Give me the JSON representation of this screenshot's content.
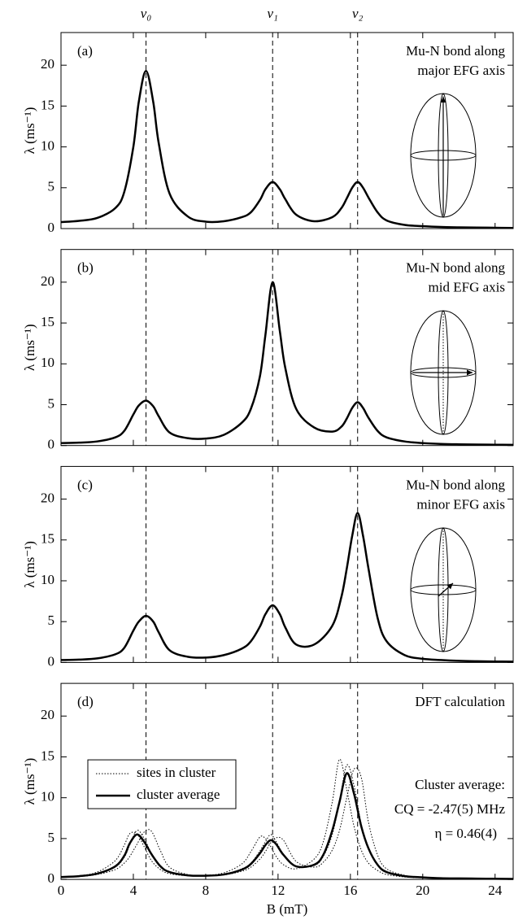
{
  "chart_data": [
    {
      "type": "line",
      "panel_label": "(a)",
      "annotation": [
        "Mu-N bond along",
        "major EFG axis"
      ],
      "ylabel": "λ (ms⁻¹)",
      "xlim": [
        0,
        25
      ],
      "ylim": [
        0,
        24
      ],
      "yticks": [
        0,
        5,
        10,
        15,
        20
      ],
      "xticks": [
        0,
        4,
        8,
        12,
        16,
        20,
        24
      ],
      "xtick_labels": false,
      "vlines": [
        {
          "value": 4.7,
          "label": "ν₀"
        },
        {
          "value": 11.7,
          "label": "ν₁"
        },
        {
          "value": 16.4,
          "label": "ν₂"
        }
      ],
      "x": [
        0,
        1,
        2,
        3,
        3.5,
        4,
        4.3,
        4.7,
        5.1,
        5.4,
        6,
        7,
        8,
        9,
        10,
        10.5,
        11,
        11.3,
        11.7,
        12.1,
        12.4,
        13,
        14,
        15,
        15.5,
        15.8,
        16.1,
        16.4,
        16.7,
        17,
        17.5,
        18,
        19,
        20,
        21,
        22,
        23,
        24,
        25
      ],
      "series": [
        {
          "color": "#000000",
          "style": "solid",
          "values": [
            0.8,
            0.95,
            1.3,
            2.5,
            4.5,
            10,
            15.5,
            19.3,
            15.5,
            10.5,
            4.3,
            1.5,
            0.85,
            0.9,
            1.4,
            2.0,
            3.5,
            4.8,
            5.7,
            4.8,
            3.6,
            1.7,
            0.9,
            1.4,
            2.5,
            3.7,
            5.0,
            5.7,
            5.0,
            3.8,
            2.0,
            1.0,
            0.45,
            0.3,
            0.2,
            0.15,
            0.12,
            0.1,
            0.08
          ]
        }
      ]
    },
    {
      "type": "line",
      "panel_label": "(b)",
      "annotation": [
        "Mu-N bond along",
        "mid EFG axis"
      ],
      "ylabel": "λ (ms⁻¹)",
      "xlim": [
        0,
        25
      ],
      "ylim": [
        0,
        24
      ],
      "yticks": [
        0,
        5,
        10,
        15,
        20
      ],
      "xticks": [
        0,
        4,
        8,
        12,
        16,
        20,
        24
      ],
      "xtick_labels": false,
      "vlines": [
        4.7,
        11.7,
        16.4
      ],
      "x": [
        0,
        1,
        2,
        3,
        3.5,
        4,
        4.3,
        4.7,
        5.1,
        5.4,
        6,
        7,
        8,
        9,
        10,
        10.5,
        11,
        11.3,
        11.7,
        12.1,
        12.4,
        13,
        14,
        15,
        15.5,
        15.8,
        16.1,
        16.4,
        16.7,
        17,
        17.5,
        18,
        19,
        20,
        21,
        22,
        23,
        24,
        25
      ],
      "series": [
        {
          "color": "#000000",
          "style": "solid",
          "values": [
            0.3,
            0.35,
            0.5,
            1.0,
            1.8,
            3.8,
            4.9,
            5.5,
            4.8,
            3.6,
            1.6,
            0.9,
            0.85,
            1.3,
            2.8,
            4.5,
            8.5,
            13.5,
            20,
            14,
            9.5,
            4.5,
            2.2,
            1.7,
            2.3,
            3.3,
            4.6,
            5.3,
            4.6,
            3.4,
            1.8,
            1.0,
            0.5,
            0.3,
            0.2,
            0.15,
            0.12,
            0.1,
            0.08
          ]
        }
      ]
    },
    {
      "type": "line",
      "panel_label": "(c)",
      "annotation": [
        "Mu-N bond along",
        "minor EFG axis"
      ],
      "ylabel": "λ (ms⁻¹)",
      "xlim": [
        0,
        25
      ],
      "ylim": [
        0,
        24
      ],
      "yticks": [
        0,
        5,
        10,
        15,
        20
      ],
      "xticks": [
        0,
        4,
        8,
        12,
        16,
        20,
        24
      ],
      "xtick_labels": false,
      "vlines": [
        4.7,
        11.7,
        16.4
      ],
      "x": [
        0,
        1,
        2,
        3,
        3.5,
        4,
        4.3,
        4.7,
        5.1,
        5.4,
        6,
        7,
        8,
        9,
        10,
        10.5,
        11,
        11.3,
        11.7,
        12.1,
        12.4,
        13,
        14,
        15,
        15.5,
        15.8,
        16.1,
        16.4,
        16.7,
        17,
        17.5,
        18,
        19,
        20,
        21,
        22,
        23,
        24,
        25
      ],
      "series": [
        {
          "color": "#000000",
          "style": "solid",
          "values": [
            0.3,
            0.35,
            0.5,
            1.0,
            1.8,
            3.9,
            5.0,
            5.7,
            5.0,
            3.7,
            1.5,
            0.7,
            0.6,
            0.9,
            1.7,
            2.6,
            4.4,
            5.9,
            7.0,
            5.9,
            4.3,
            2.2,
            2.2,
            4.5,
            8,
            11.5,
            15.5,
            18.3,
            15.5,
            11.5,
            5.5,
            2.6,
            0.9,
            0.45,
            0.3,
            0.2,
            0.15,
            0.12,
            0.1
          ]
        }
      ]
    },
    {
      "type": "line",
      "panel_label": "(d)",
      "annotation": [
        "DFT calculation"
      ],
      "notes": [
        "Cluster average:",
        "CQ = -2.47(5) MHz",
        "η = 0.46(4)"
      ],
      "ylabel": "λ (ms⁻¹)",
      "xlabel": "B (mT)",
      "xlim": [
        0,
        25
      ],
      "ylim": [
        0,
        24
      ],
      "yticks": [
        0,
        5,
        10,
        15,
        20
      ],
      "xticks": [
        0,
        4,
        8,
        12,
        16,
        20,
        24
      ],
      "xtick_labels": true,
      "vlines": [
        4.7,
        11.7,
        16.4
      ],
      "x": [
        0,
        1,
        2,
        3,
        3.5,
        3.8,
        4.2,
        4.6,
        5,
        5.5,
        6,
        7,
        8,
        9,
        10,
        10.5,
        11,
        11.3,
        11.6,
        11.9,
        12.3,
        13,
        14,
        14.5,
        15,
        15.4,
        15.8,
        16.2,
        16.6,
        17,
        17.5,
        18,
        19,
        20,
        21,
        22,
        23,
        24,
        25
      ],
      "series": [
        {
          "name": "sites in cluster",
          "color": "#000000",
          "style": "dotted",
          "values": [
            0.3,
            0.45,
            0.9,
            2.3,
            4.2,
            5.6,
            5.6,
            4.0,
            2.3,
            1.2,
            0.7,
            0.45,
            0.5,
            0.8,
            1.9,
            3.4,
            5.2,
            5.0,
            4.0,
            2.8,
            1.8,
            1.3,
            2.5,
            4.6,
            9.5,
            14.7,
            11,
            6.5,
            3.6,
            2.0,
            1.1,
            0.6,
            0.3,
            0.2,
            0.12,
            0.1,
            0.08,
            0.06,
            0.05
          ]
        },
        {
          "color": "#000000",
          "style": "dotted",
          "values": [
            0.3,
            0.35,
            0.6,
            1.2,
            2.0,
            2.8,
            4.3,
            5.8,
            5.9,
            3.5,
            1.5,
            0.6,
            0.45,
            0.55,
            1.0,
            1.5,
            2.5,
            3.4,
            4.5,
            5.1,
            4.8,
            2.2,
            1.5,
            2.1,
            3.6,
            6,
            10,
            13.5,
            12.5,
            7,
            3,
            1.3,
            0.5,
            0.3,
            0.18,
            0.13,
            0.1,
            0.08,
            0.06
          ]
        },
        {
          "color": "#000000",
          "style": "dotted",
          "values": [
            0.3,
            0.4,
            0.7,
            1.5,
            2.7,
            4.2,
            6.0,
            5.0,
            3.2,
            1.6,
            0.9,
            0.5,
            0.45,
            0.6,
            1.3,
            2.0,
            3.5,
            4.6,
            5.5,
            4.6,
            3.1,
            1.6,
            1.7,
            2.8,
            5.5,
            9.5,
            14,
            11.5,
            6.8,
            3.9,
            1.8,
            0.9,
            0.4,
            0.25,
            0.15,
            0.12,
            0.1,
            0.08,
            0.06
          ]
        },
        {
          "name": "cluster average",
          "color": "#000000",
          "style": "solid",
          "values": [
            0.3,
            0.4,
            0.7,
            1.6,
            2.9,
            4.4,
            5.5,
            4.6,
            3.1,
            1.6,
            0.9,
            0.5,
            0.45,
            0.6,
            1.2,
            1.9,
            3.2,
            4.2,
            4.8,
            4.3,
            3.0,
            1.6,
            1.8,
            3.0,
            6.0,
            9.5,
            13,
            10.5,
            6.5,
            3.8,
            1.8,
            0.9,
            0.4,
            0.25,
            0.15,
            0.12,
            0.1,
            0.08,
            0.06
          ]
        }
      ]
    }
  ]
}
